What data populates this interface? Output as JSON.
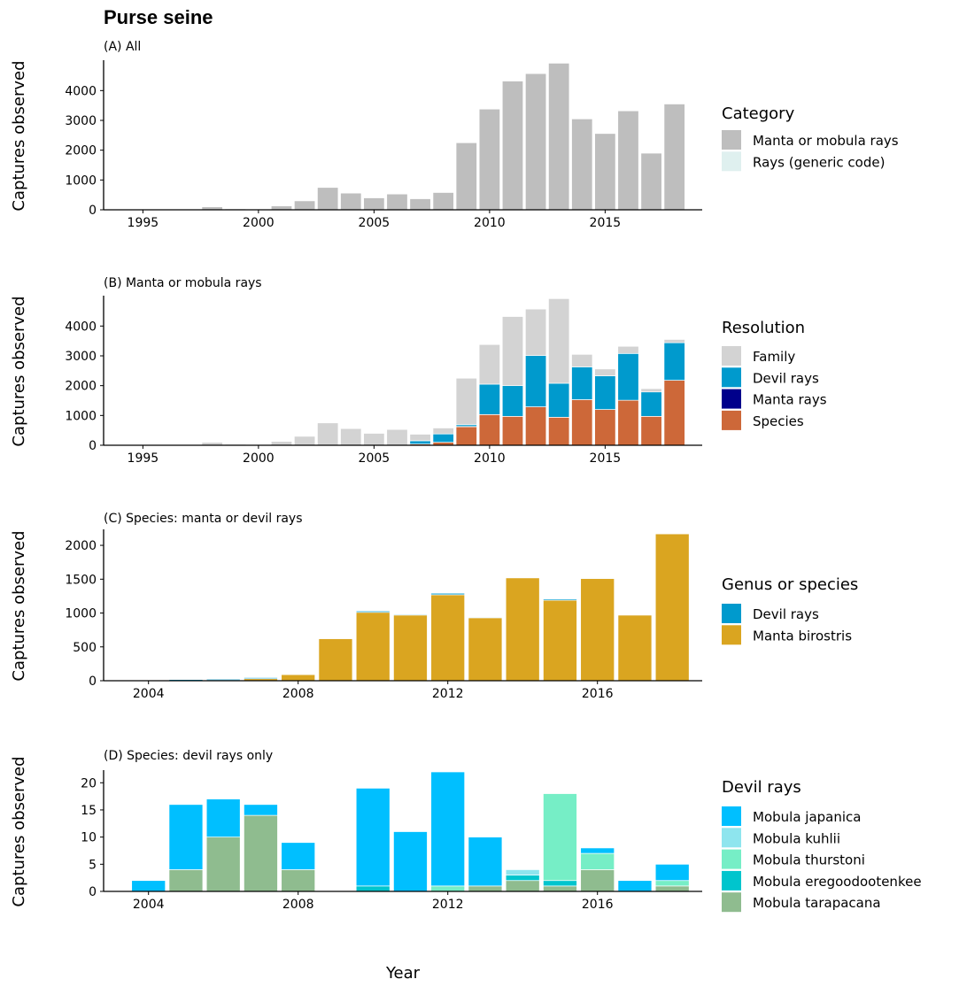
{
  "figure_title": "Purse seine",
  "xlabel": "Year",
  "ylabel": "Captures observed",
  "chart_data": [
    {
      "panel": "A",
      "type": "bar",
      "stacked": true,
      "subtitle": "(A) All",
      "xlim": [
        1993.3,
        2019.2
      ],
      "ylim": [
        0,
        4960
      ],
      "xticks": [
        1995,
        2000,
        2005,
        2010,
        2015
      ],
      "yticks": [
        0,
        1000,
        2000,
        3000,
        4000
      ],
      "grid": false,
      "legend_position": "right",
      "legend_title": "Category",
      "x": [
        1995,
        1996,
        1997,
        1998,
        1999,
        2000,
        2001,
        2002,
        2003,
        2004,
        2005,
        2006,
        2007,
        2008,
        2009,
        2010,
        2011,
        2012,
        2013,
        2014,
        2015,
        2016,
        2017,
        2018
      ],
      "series": [
        {
          "name": "Manta or mobula rays",
          "color": "#bebebe",
          "values": [
            10,
            15,
            20,
            100,
            30,
            20,
            130,
            300,
            750,
            560,
            400,
            530,
            370,
            580,
            2250,
            3380,
            4320,
            4570,
            4920,
            3050,
            2560,
            3320,
            1900,
            3550
          ]
        },
        {
          "name": "Rays (generic code)",
          "color": "#dff0ef",
          "values": [
            0,
            0,
            0,
            0,
            0,
            0,
            0,
            0,
            0,
            0,
            0,
            0,
            0,
            0,
            0,
            0,
            0,
            0,
            0,
            0,
            0,
            0,
            0,
            0
          ]
        }
      ]
    },
    {
      "panel": "B",
      "type": "bar",
      "stacked": true,
      "subtitle": "(B) Manta or mobula rays",
      "xlim": [
        1993.3,
        2019.2
      ],
      "ylim": [
        0,
        4960
      ],
      "xticks": [
        1995,
        2000,
        2005,
        2010,
        2015
      ],
      "yticks": [
        0,
        1000,
        2000,
        3000,
        4000
      ],
      "grid": false,
      "legend_position": "right",
      "legend_title": "Resolution",
      "x": [
        1995,
        1996,
        1997,
        1998,
        1999,
        2000,
        2001,
        2002,
        2003,
        2004,
        2005,
        2006,
        2007,
        2008,
        2009,
        2010,
        2011,
        2012,
        2013,
        2014,
        2015,
        2016,
        2017,
        2018
      ],
      "series": [
        {
          "name": "Species",
          "color": "#cd6839",
          "values": [
            0,
            0,
            0,
            0,
            0,
            0,
            0,
            0,
            0,
            0,
            0,
            0,
            40,
            100,
            620,
            1030,
            970,
            1290,
            940,
            1530,
            1200,
            1510,
            970,
            2180
          ]
        },
        {
          "name": "Manta rays",
          "color": "#00008b",
          "values": [
            0,
            0,
            0,
            0,
            0,
            0,
            0,
            0,
            0,
            0,
            0,
            0,
            0,
            0,
            10,
            0,
            0,
            0,
            0,
            0,
            0,
            0,
            0,
            0
          ]
        },
        {
          "name": "Devil rays",
          "color": "#009acd",
          "values": [
            0,
            0,
            0,
            0,
            0,
            0,
            0,
            0,
            0,
            0,
            0,
            0,
            110,
            280,
            60,
            1020,
            1030,
            1720,
            1140,
            1100,
            1130,
            1570,
            820,
            1260
          ]
        },
        {
          "name": "Family",
          "color": "#d3d3d3",
          "values": [
            10,
            15,
            20,
            100,
            30,
            20,
            130,
            300,
            750,
            560,
            400,
            530,
            220,
            200,
            1560,
            1330,
            2320,
            1560,
            2840,
            420,
            230,
            240,
            110,
            110
          ]
        }
      ]
    },
    {
      "panel": "C",
      "type": "bar",
      "stacked": true,
      "subtitle": "(C) Species: manta or devil rays",
      "xlim": [
        2002.8,
        2018.8
      ],
      "ylim": [
        0,
        2210
      ],
      "xticks": [
        2004,
        2008,
        2012,
        2016
      ],
      "yticks": [
        0,
        500,
        1000,
        1500,
        2000
      ],
      "grid": false,
      "legend_position": "right",
      "legend_title": "Genus or species",
      "x": [
        2003,
        2004,
        2005,
        2006,
        2007,
        2008,
        2009,
        2010,
        2011,
        2012,
        2013,
        2014,
        2015,
        2016,
        2017,
        2018
      ],
      "series": [
        {
          "name": "Manta birostris",
          "color": "#daa520",
          "values": [
            0,
            0,
            2,
            5,
            30,
            90,
            620,
            1010,
            970,
            1270,
            930,
            1520,
            1190,
            1510,
            970,
            2170
          ]
        },
        {
          "name": "Devil rays",
          "color": "#009acd",
          "values": [
            0,
            2,
            16,
            17,
            16,
            9,
            0,
            19,
            11,
            22,
            10,
            4,
            18,
            8,
            2,
            5
          ]
        }
      ]
    },
    {
      "panel": "D",
      "type": "bar",
      "stacked": true,
      "subtitle": "(D) Species: devil rays only",
      "xlim": [
        2002.8,
        2018.8
      ],
      "ylim": [
        0,
        22
      ],
      "xticks": [
        2004,
        2008,
        2012,
        2016
      ],
      "yticks": [
        0,
        5,
        10,
        15,
        20
      ],
      "grid": false,
      "legend_position": "right",
      "legend_title": "Devil rays",
      "x": [
        2004,
        2005,
        2006,
        2007,
        2008,
        2010,
        2011,
        2012,
        2013,
        2014,
        2015,
        2016,
        2017,
        2018
      ],
      "series": [
        {
          "name": "Mobula tarapacana",
          "color": "#8fbc8f",
          "values": [
            0,
            4,
            10,
            14,
            4,
            0,
            0,
            0,
            1,
            2,
            1,
            4,
            0,
            1
          ]
        },
        {
          "name": "Mobula eregoodootenkee",
          "color": "#00c5cd",
          "values": [
            0,
            0,
            0,
            0,
            0,
            1,
            0,
            0,
            0,
            1,
            1,
            0,
            0,
            0
          ]
        },
        {
          "name": "Mobula thurstoni",
          "color": "#76eec6",
          "values": [
            0,
            0,
            0,
            0,
            0,
            0,
            0,
            1,
            0,
            0,
            16,
            3,
            0,
            1
          ]
        },
        {
          "name": "Mobula kuhlii",
          "color": "#8ee5ee",
          "values": [
            0,
            0,
            0,
            0,
            0,
            0,
            0,
            0,
            0,
            1,
            0,
            0,
            0,
            0
          ]
        },
        {
          "name": "Mobula japanica",
          "color": "#00bfff",
          "values": [
            2,
            12,
            7,
            2,
            5,
            18,
            11,
            21,
            9,
            0,
            0,
            1,
            2,
            3
          ]
        }
      ],
      "legend_order": [
        "Mobula japanica",
        "Mobula kuhlii",
        "Mobula thurstoni",
        "Mobula eregoodootenkee",
        "Mobula tarapacana"
      ]
    }
  ],
  "legend_orders": {
    "A": [
      "Manta or mobula rays",
      "Rays (generic code)"
    ],
    "B": [
      "Family",
      "Devil rays",
      "Manta rays",
      "Species"
    ],
    "C": [
      "Devil rays",
      "Manta birostris"
    ]
  }
}
